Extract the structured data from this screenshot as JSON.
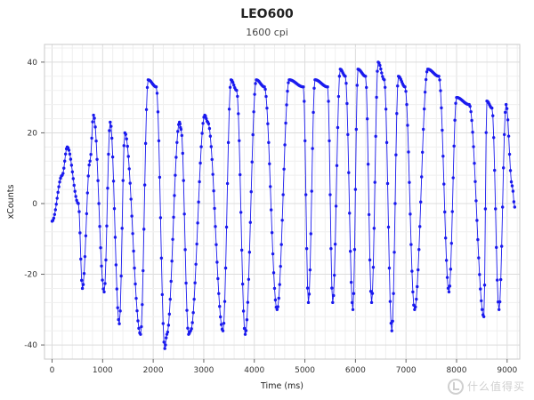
{
  "chart_data": {
    "type": "line",
    "title": "LEO600",
    "subtitle": "1600 cpi",
    "xlabel": "Time (ms)",
    "ylabel": "xCounts",
    "xlim": [
      -150,
      9250
    ],
    "ylim": [
      -44,
      45
    ],
    "xticks": [
      0,
      1000,
      2000,
      3000,
      4000,
      5000,
      6000,
      7000,
      8000,
      9000
    ],
    "yticks": [
      -40,
      -20,
      0,
      20,
      40
    ],
    "grid": true,
    "marker": "circle",
    "series": [
      {
        "color": "#1a1aee",
        "x": [
          0,
          200,
          300,
          520,
          600,
          750,
          820,
          1030,
          1150,
          1330,
          1440,
          1750,
          1900,
          2060,
          2230,
          2270,
          2520,
          2550,
          2700,
          2740,
          3020,
          3080,
          3380,
          3540,
          3650,
          3820,
          4040,
          4200,
          4450,
          4690,
          4970,
          5070,
          5200,
          5450,
          5550,
          5700,
          5800,
          5950,
          6050,
          6200,
          6320,
          6450,
          6570,
          6720,
          6850,
          6980,
          7170,
          7430,
          7650,
          7850,
          8000,
          8250,
          8540,
          8600,
          8700,
          8840,
          8980,
          9100,
          9150
        ],
        "y": [
          -5,
          8,
          16,
          0,
          -24,
          12,
          25,
          -25,
          23,
          -34,
          20,
          -37,
          35,
          33,
          -41,
          -37,
          23,
          21,
          -37,
          -36,
          25,
          23,
          -36,
          35,
          32,
          -37,
          35,
          33,
          -30,
          35,
          33,
          -28,
          35,
          33,
          -28,
          38,
          36,
          -30,
          38,
          36,
          -28,
          40,
          35,
          -36,
          36,
          33,
          -30,
          38,
          36,
          -25,
          30,
          28,
          -32,
          29,
          27,
          -30,
          28,
          5,
          -1
        ]
      }
    ]
  },
  "watermark": "什么值得买"
}
